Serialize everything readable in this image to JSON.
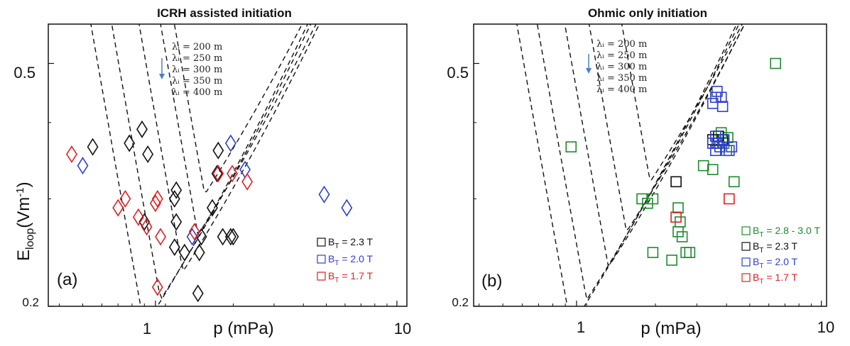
{
  "chart_data": [
    {
      "type": "scatter",
      "panel": "(a)",
      "title": "ICRH assisted initiation",
      "xlabel": "p (mPa)",
      "ylabel": "E",
      "ylabel_sub": "loop",
      "ylabel_unit": "(Vm",
      "ylabel_sup": "-1",
      "ylabel_close": ")",
      "xscale": "log",
      "yscale": "log",
      "xlim": [
        0.36,
        11
      ],
      "ylim": [
        0.2,
        0.58
      ],
      "xticklabels": [
        "1",
        "10"
      ],
      "yticklabels": [
        "0.2",
        "0.5"
      ],
      "xticks": [
        1,
        10
      ],
      "yticks": [
        0.2,
        0.5
      ],
      "marker": "diamond",
      "curve_labels": [
        "λᵢ = 200 m",
        "λᵢ = 250 m",
        "λᵢ = 300 m",
        "λᵢ = 350 m",
        "λᵢ = 400 m"
      ],
      "curves": [
        {
          "xmin": 1.6,
          "ymin": 0.305
        },
        {
          "xmin": 1.5,
          "ymin": 0.262
        },
        {
          "xmin": 1.3,
          "ymin": 0.228
        },
        {
          "xmin": 1.05,
          "ymin": 0.205
        },
        {
          "xmin": 0.9,
          "ymin": 0.185
        }
      ],
      "legend_position": "bottom-right",
      "series": [
        {
          "name": "B_T = 2.3 T",
          "label_main": "B",
          "label_sub": "T",
          "label_rest": " = 2.3 T",
          "color": "#111111",
          "x": [
            0.55,
            0.78,
            0.88,
            0.93,
            0.9,
            1.22,
            1.22,
            1.32,
            1.52,
            1.55,
            1.72,
            1.8,
            1.82,
            2.05,
            1.9,
            2.1,
            1.2,
            1.5,
            1.2
          ],
          "y": [
            0.365,
            0.37,
            0.39,
            0.355,
            0.275,
            0.275,
            0.31,
            0.245,
            0.245,
            0.26,
            0.29,
            0.33,
            0.36,
            0.26,
            0.26,
            0.26,
            0.3,
            0.21,
            0.25
          ]
        },
        {
          "name": "B_T = 2.0 T",
          "label_main": "B",
          "label_sub": "T",
          "label_rest": " = 2.0 T",
          "color": "#2f3fcc",
          "x": [
            0.5,
            1.42,
            2.05,
            2.35,
            5.0,
            6.2
          ],
          "y": [
            0.34,
            0.26,
            0.37,
            0.335,
            0.305,
            0.29
          ]
        },
        {
          "name": "B_T = 1.7 T",
          "label_main": "B",
          "label_sub": "T",
          "label_rest": " = 1.7 T",
          "color": "#e02020",
          "x": [
            0.45,
            0.7,
            0.75,
            0.85,
            0.92,
            1.0,
            1.02,
            1.05,
            1.45,
            1.82,
            2.08,
            2.4,
            1.02
          ],
          "y": [
            0.355,
            0.29,
            0.3,
            0.28,
            0.27,
            0.295,
            0.3,
            0.26,
            0.265,
            0.33,
            0.33,
            0.32,
            0.215
          ]
        }
      ]
    },
    {
      "type": "scatter",
      "panel": "(b)",
      "title": "Ohmic only initiation",
      "xlabel": "p (mPa)",
      "xscale": "log",
      "yscale": "log",
      "xlim": [
        0.38,
        10.5
      ],
      "ylim": [
        0.2,
        0.58
      ],
      "xticklabels": [
        "1",
        "10"
      ],
      "yticklabels": [
        "0.2",
        "0.5"
      ],
      "xticks": [
        1,
        10
      ],
      "yticks": [
        0.2,
        0.5
      ],
      "marker": "square",
      "curve_labels": [
        "λᵢ = 200 m",
        "λᵢ = 250 m",
        "λᵢ = 300 m",
        "λᵢ = 350 m",
        "λᵢ = 400 m"
      ],
      "curves": [
        {
          "xmin": 2.0,
          "ymin": 0.32
        },
        {
          "xmin": 1.6,
          "ymin": 0.265
        },
        {
          "xmin": 1.35,
          "ymin": 0.232
        },
        {
          "xmin": 1.1,
          "ymin": 0.205
        },
        {
          "xmin": 0.95,
          "ymin": 0.185
        }
      ],
      "legend_position": "bottom-right",
      "series": [
        {
          "name": "B_T = 2.8 - 3.0 T",
          "label_main": "B",
          "label_sub": "T",
          "label_rest": " = 2.8 - 3.0 T",
          "color": "#1f8a2e",
          "x": [
            0.95,
            1.85,
            1.95,
            2.05,
            2.6,
            2.65,
            2.6,
            2.7,
            2.05,
            2.8,
            2.9,
            2.45,
            3.3,
            3.6,
            3.8,
            3.9,
            4.0,
            4.15,
            4.1,
            4.4,
            6.5
          ],
          "y": [
            0.365,
            0.3,
            0.295,
            0.3,
            0.29,
            0.275,
            0.265,
            0.26,
            0.245,
            0.245,
            0.245,
            0.238,
            0.34,
            0.335,
            0.37,
            0.385,
            0.37,
            0.378,
            0.36,
            0.32,
            0.5
          ]
        },
        {
          "name": "B_T = 2.3 T",
          "label_main": "B",
          "label_sub": "T",
          "label_rest": " = 2.3 T",
          "color": "#111111",
          "x": [
            2.55,
            3.6,
            3.8,
            3.95
          ],
          "y": [
            0.32,
            0.375,
            0.38,
            0.375
          ]
        },
        {
          "name": "B_T = 2.0 T",
          "label_main": "B",
          "label_sub": "T",
          "label_rest": " = 2.0 T",
          "color": "#2f3fcc",
          "x": [
            3.6,
            3.7,
            3.75,
            3.9,
            3.95,
            3.7,
            3.75,
            4.0,
            3.85,
            4.2,
            4.3,
            3.7,
            3.6
          ],
          "y": [
            0.43,
            0.44,
            0.45,
            0.44,
            0.425,
            0.38,
            0.37,
            0.375,
            0.365,
            0.36,
            0.365,
            0.36,
            0.37
          ]
        },
        {
          "name": "B_T = 1.7 T",
          "label_main": "B",
          "label_sub": "T",
          "label_rest": " = 1.7 T",
          "color": "#e02020",
          "x": [
            2.55,
            4.2
          ],
          "y": [
            0.28,
            0.3
          ]
        }
      ]
    }
  ]
}
